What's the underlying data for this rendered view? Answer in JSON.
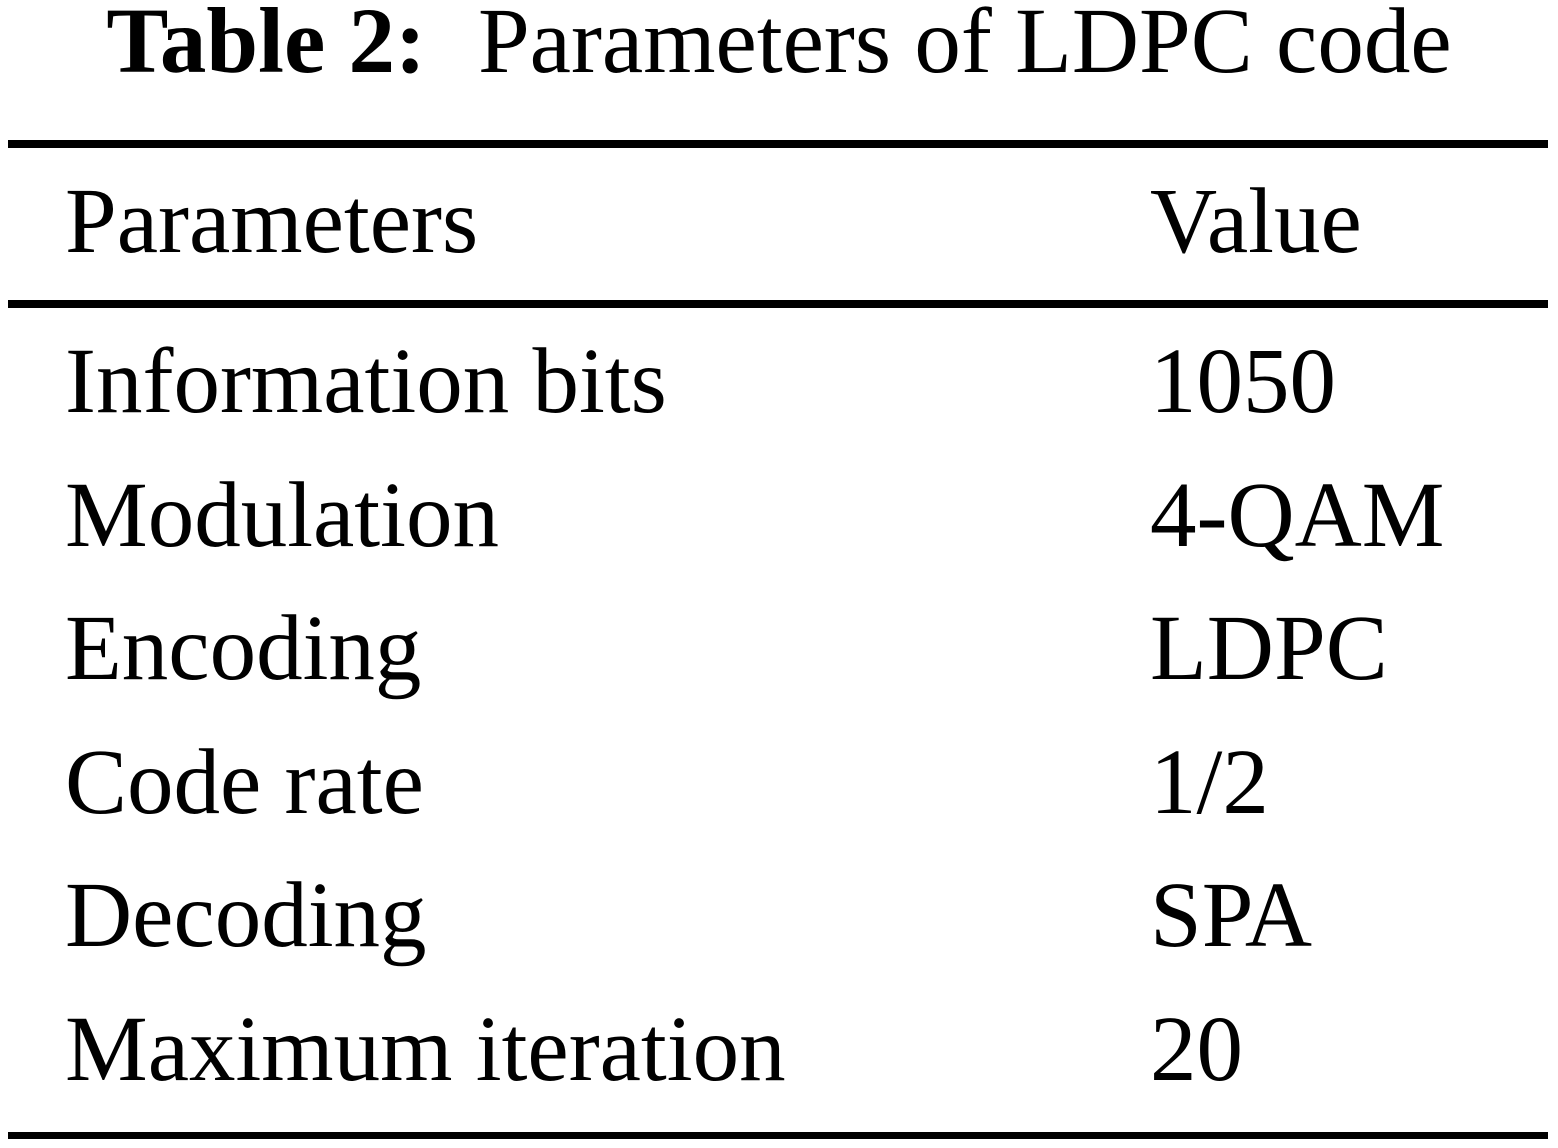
{
  "caption": {
    "label": "Table 2:",
    "text": "Parameters of LDPC code"
  },
  "table": {
    "columns": [
      "Parameters",
      "Value"
    ],
    "rows": [
      {
        "parameter": "Information bits",
        "value": "1050"
      },
      {
        "parameter": "Modulation",
        "value": "4-QAM"
      },
      {
        "parameter": "Encoding",
        "value": "LDPC"
      },
      {
        "parameter": "Code rate",
        "value": "1/2"
      },
      {
        "parameter": "Decoding",
        "value": "SPA"
      },
      {
        "parameter": "Maximum iteration",
        "value": "20"
      }
    ]
  },
  "colors": {
    "background": "#ffffff",
    "text": "#000000",
    "rule": "#000000"
  }
}
